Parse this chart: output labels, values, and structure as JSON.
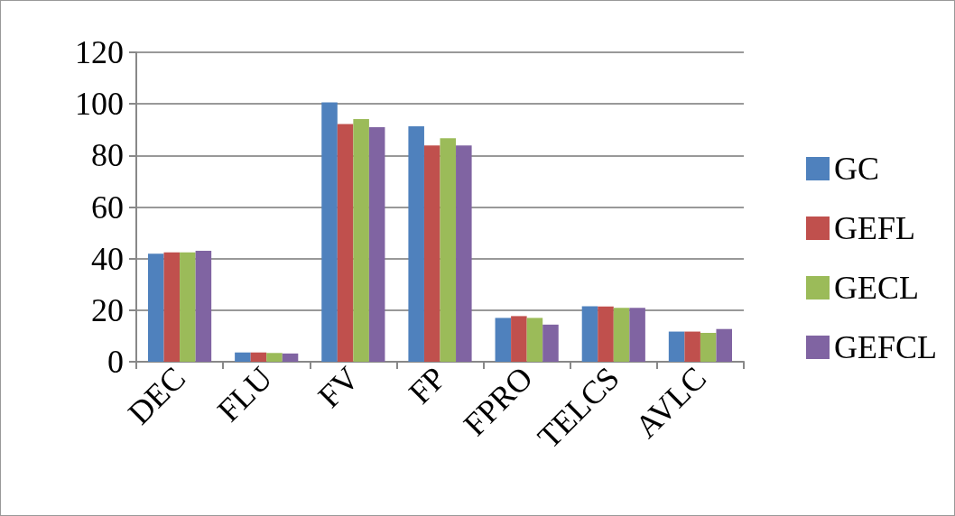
{
  "chart_data": {
    "type": "bar",
    "categories": [
      "DEC",
      "FLU",
      "FV",
      "FP",
      "FPRO",
      "TELCS",
      "AVLC"
    ],
    "series": [
      {
        "name": "GC",
        "color": "#4f81bd",
        "values": [
          41.9,
          3.6,
          100.6,
          91.3,
          17.0,
          21.5,
          11.7
        ]
      },
      {
        "name": "GEFL",
        "color": "#c0504d",
        "values": [
          42.4,
          3.6,
          92.2,
          83.9,
          17.7,
          21.4,
          11.7
        ]
      },
      {
        "name": "GECL",
        "color": "#9bbb59",
        "values": [
          42.4,
          3.4,
          94.1,
          86.7,
          17.0,
          20.9,
          11.2
        ]
      },
      {
        "name": "GEFCL",
        "color": "#8064a2",
        "values": [
          43.0,
          3.2,
          91.0,
          83.9,
          14.4,
          20.9,
          12.7
        ]
      }
    ],
    "ylim": [
      0,
      120
    ],
    "yticks": [
      0,
      20,
      40,
      60,
      80,
      100,
      120
    ],
    "grid": "y",
    "legend": "right"
  }
}
